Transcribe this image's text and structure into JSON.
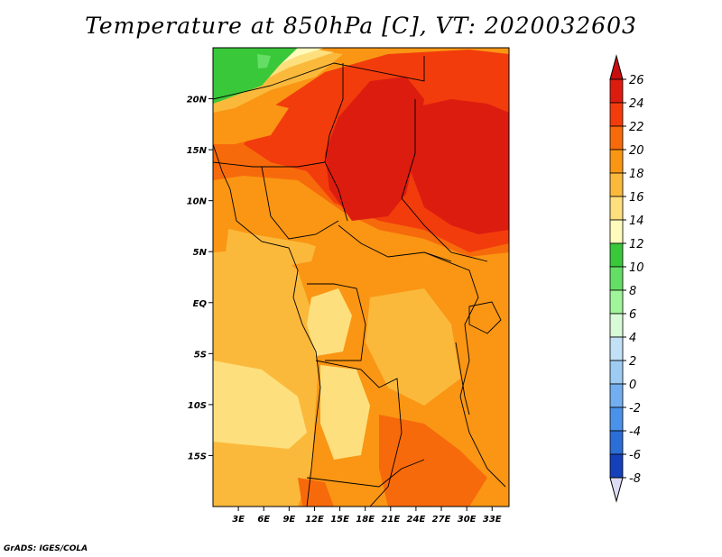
{
  "title": "Temperature at 850hPa [C], VT: 2020032603",
  "credit": "GrADS: IGES/COLA",
  "map": {
    "lon_range": [
      0,
      35
    ],
    "lat_range": [
      -20,
      25
    ],
    "lon_ticks": [
      {
        "lon": 3,
        "label": "3E"
      },
      {
        "lon": 6,
        "label": "6E"
      },
      {
        "lon": 9,
        "label": "9E"
      },
      {
        "lon": 12,
        "label": "12E"
      },
      {
        "lon": 15,
        "label": "15E"
      },
      {
        "lon": 18,
        "label": "18E"
      },
      {
        "lon": 21,
        "label": "21E"
      },
      {
        "lon": 24,
        "label": "24E"
      },
      {
        "lon": 27,
        "label": "27E"
      },
      {
        "lon": 30,
        "label": "30E"
      },
      {
        "lon": 33,
        "label": "33E"
      }
    ],
    "lat_ticks": [
      {
        "lat": 20,
        "label": "20N"
      },
      {
        "lat": 15,
        "label": "15N"
      },
      {
        "lat": 10,
        "label": "10N"
      },
      {
        "lat": 5,
        "label": "5N"
      },
      {
        "lat": 0,
        "label": "EQ"
      },
      {
        "lat": -5,
        "label": "5S"
      },
      {
        "lat": -10,
        "label": "10S"
      },
      {
        "lat": -15,
        "label": "15S"
      }
    ]
  },
  "colorbar": {
    "levels": [
      {
        "value": "26",
        "color": "#dd1c10"
      },
      {
        "value": "24",
        "color": "#f23c0c"
      },
      {
        "value": "22",
        "color": "#f76a0b"
      },
      {
        "value": "20",
        "color": "#fa9614"
      },
      {
        "value": "18",
        "color": "#fbb93c"
      },
      {
        "value": "16",
        "color": "#fde07d"
      },
      {
        "value": "14",
        "color": "#fefbbd"
      },
      {
        "value": "12",
        "color": "#39c839"
      },
      {
        "value": "10",
        "color": "#64de64"
      },
      {
        "value": "8",
        "color": "#a0f59a"
      },
      {
        "value": "6",
        "color": "#d8fad6"
      },
      {
        "value": "4",
        "color": "#c2e0f6"
      },
      {
        "value": "2",
        "color": "#9ecbf3"
      },
      {
        "value": "0",
        "color": "#73aff0"
      },
      {
        "value": "-2",
        "color": "#4a92ea"
      },
      {
        "value": "-4",
        "color": "#2a6ed6"
      },
      {
        "value": "-6",
        "color": "#1440bc"
      },
      {
        "value": "-8",
        "color": "#0a1c86"
      }
    ],
    "top_color": "#c80f0f",
    "bottom_color": "#dcdcf5"
  }
}
